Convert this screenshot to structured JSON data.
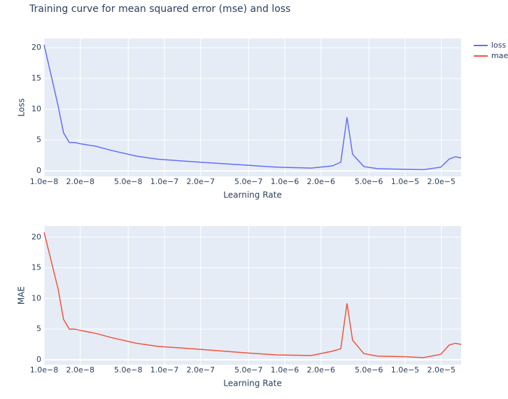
{
  "title": "Training curve for mean squared error (mse) and loss",
  "legend": "top-right",
  "chart_data": [
    {
      "type": "line",
      "xlabel": "Learning Rate",
      "ylabel": "Loss",
      "log_x": true,
      "grid": true,
      "x": [
        1e-08,
        1.31e-08,
        1.45e-08,
        1.62e-08,
        1.8e-08,
        2e-08,
        2.69e-08,
        3.66e-08,
        5.85e-08,
        8.75e-08,
        2e-07,
        5e-07,
        8.51e-07,
        1.66e-06,
        2.48e-06,
        2.92e-06,
        3.29e-06,
        3.66e-06,
        4.54e-06,
        5.93e-06,
        1.01e-05,
        1.42e-05,
        1.98e-05,
        2.32e-05,
        2.62e-05,
        2.92e-05
      ],
      "series": [
        {
          "name": "loss",
          "color": "#636efa",
          "values": [
            20.5,
            10.5,
            6.2,
            4.6,
            4.6,
            4.4,
            4.0,
            3.3,
            2.4,
            1.9,
            1.4,
            0.9,
            0.6,
            0.45,
            0.8,
            1.4,
            8.7,
            2.7,
            0.7,
            0.35,
            0.25,
            0.2,
            0.6,
            1.9,
            2.3,
            2.1
          ]
        }
      ],
      "xlim": [
        1e-08,
        2.92e-05
      ],
      "ylim": [
        -0.9,
        21.5
      ],
      "xticks": [
        {
          "value": 1e-08,
          "label": "1.0e−8"
        },
        {
          "value": 2e-08,
          "label": "2.0e−8"
        },
        {
          "value": 5e-08,
          "label": "5.0e−8"
        },
        {
          "value": 1e-07,
          "label": "1.0e−7"
        },
        {
          "value": 2e-07,
          "label": "2.0e−7"
        },
        {
          "value": 5e-07,
          "label": "5.0e−7"
        },
        {
          "value": 1e-06,
          "label": "1.0e−6"
        },
        {
          "value": 2e-06,
          "label": "2.0e−6"
        },
        {
          "value": 5e-06,
          "label": "5.0e−6"
        },
        {
          "value": 1e-05,
          "label": "1.0e−5"
        },
        {
          "value": 2e-05,
          "label": "2.0e−5"
        }
      ],
      "yticks": [
        0,
        5,
        10,
        15,
        20
      ]
    },
    {
      "type": "line",
      "xlabel": "Learning Rate",
      "ylabel": "MAE",
      "log_x": true,
      "grid": true,
      "x": [
        1e-08,
        1.31e-08,
        1.45e-08,
        1.62e-08,
        1.8e-08,
        2e-08,
        2.69e-08,
        3.66e-08,
        5.85e-08,
        8.75e-08,
        2e-07,
        5e-07,
        8.51e-07,
        1.66e-06,
        2.48e-06,
        2.92e-06,
        3.29e-06,
        3.66e-06,
        4.54e-06,
        5.93e-06,
        1.01e-05,
        1.42e-05,
        1.98e-05,
        2.32e-05,
        2.62e-05,
        2.92e-05
      ],
      "series": [
        {
          "name": "mae",
          "color": "#ef553b",
          "values": [
            20.8,
            11.5,
            6.6,
            5.0,
            5.0,
            4.8,
            4.3,
            3.6,
            2.7,
            2.2,
            1.7,
            1.1,
            0.8,
            0.7,
            1.4,
            1.8,
            9.2,
            3.2,
            1.0,
            0.6,
            0.5,
            0.35,
            0.9,
            2.4,
            2.7,
            2.5
          ]
        }
      ],
      "xlim": [
        1e-08,
        2.92e-05
      ],
      "ylim": [
        -0.8,
        21.8
      ],
      "xticks": [
        {
          "value": 1e-08,
          "label": "1.0e−8"
        },
        {
          "value": 2e-08,
          "label": "2.0e−8"
        },
        {
          "value": 5e-08,
          "label": "5.0e−8"
        },
        {
          "value": 1e-07,
          "label": "1.0e−7"
        },
        {
          "value": 2e-07,
          "label": "2.0e−7"
        },
        {
          "value": 5e-07,
          "label": "5.0e−7"
        },
        {
          "value": 1e-06,
          "label": "1.0e−6"
        },
        {
          "value": 2e-06,
          "label": "2.0e−6"
        },
        {
          "value": 5e-06,
          "label": "5.0e−6"
        },
        {
          "value": 1e-05,
          "label": "1.0e−5"
        },
        {
          "value": 2e-05,
          "label": "2.0e−5"
        }
      ],
      "yticks": [
        0,
        5,
        10,
        15,
        20
      ]
    }
  ]
}
